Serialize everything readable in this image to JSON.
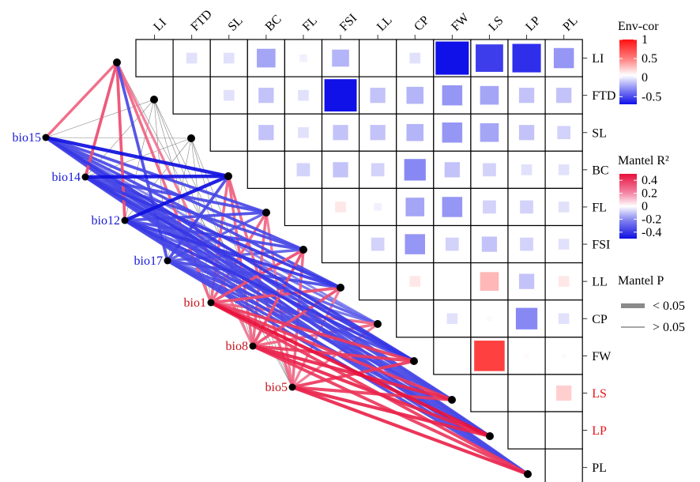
{
  "chart_data": {
    "type": "heatmap",
    "variables": [
      "LI",
      "FTD",
      "SL",
      "BC",
      "FL",
      "FSI",
      "LL",
      "CP",
      "FW",
      "LS",
      "LP",
      "PL"
    ],
    "row_label_colors": {
      "LS": "#e8141c",
      "LP": "#e8141c"
    },
    "env_cor": [
      {
        "row": "LI",
        "col": "FTD",
        "value": -0.1
      },
      {
        "row": "LI",
        "col": "SL",
        "value": -0.1
      },
      {
        "row": "LI",
        "col": "BC",
        "value": -0.3
      },
      {
        "row": "LI",
        "col": "FL",
        "value": -0.05
      },
      {
        "row": "LI",
        "col": "FSI",
        "value": -0.25
      },
      {
        "row": "LI",
        "col": "CP",
        "value": -0.1
      },
      {
        "row": "LI",
        "col": "FW",
        "value": -0.95
      },
      {
        "row": "LI",
        "col": "LS",
        "value": -0.65
      },
      {
        "row": "LI",
        "col": "LP",
        "value": -0.7
      },
      {
        "row": "LI",
        "col": "PL",
        "value": -0.35
      },
      {
        "row": "FTD",
        "col": "FSI",
        "value": -0.9
      },
      {
        "row": "FTD",
        "col": "SL",
        "value": -0.1
      },
      {
        "row": "FTD",
        "col": "BC",
        "value": -0.2
      },
      {
        "row": "FTD",
        "col": "FL",
        "value": -0.1
      },
      {
        "row": "FTD",
        "col": "LL",
        "value": -0.2
      },
      {
        "row": "FTD",
        "col": "CP",
        "value": -0.25
      },
      {
        "row": "FTD",
        "col": "FW",
        "value": -0.35
      },
      {
        "row": "FTD",
        "col": "LS",
        "value": -0.3
      },
      {
        "row": "FTD",
        "col": "LP",
        "value": -0.2
      },
      {
        "row": "FTD",
        "col": "PL",
        "value": -0.2
      },
      {
        "row": "SL",
        "col": "BC",
        "value": -0.2
      },
      {
        "row": "SL",
        "col": "FL",
        "value": -0.1
      },
      {
        "row": "SL",
        "col": "FSI",
        "value": -0.2
      },
      {
        "row": "SL",
        "col": "LL",
        "value": -0.2
      },
      {
        "row": "SL",
        "col": "CP",
        "value": -0.25
      },
      {
        "row": "SL",
        "col": "FW",
        "value": -0.35
      },
      {
        "row": "SL",
        "col": "LS",
        "value": -0.3
      },
      {
        "row": "SL",
        "col": "LP",
        "value": -0.2
      },
      {
        "row": "SL",
        "col": "PL",
        "value": -0.15
      },
      {
        "row": "BC",
        "col": "FL",
        "value": -0.15
      },
      {
        "row": "BC",
        "col": "FSI",
        "value": -0.2
      },
      {
        "row": "BC",
        "col": "LL",
        "value": -0.15
      },
      {
        "row": "BC",
        "col": "CP",
        "value": -0.4
      },
      {
        "row": "BC",
        "col": "FW",
        "value": -0.2
      },
      {
        "row": "BC",
        "col": "LS",
        "value": -0.15
      },
      {
        "row": "BC",
        "col": "LP",
        "value": -0.1
      },
      {
        "row": "BC",
        "col": "PL",
        "value": -0.1
      },
      {
        "row": "FL",
        "col": "FSI",
        "value": 0.1
      },
      {
        "row": "FL",
        "col": "LL",
        "value": -0.05
      },
      {
        "row": "FL",
        "col": "CP",
        "value": -0.3
      },
      {
        "row": "FL",
        "col": "FW",
        "value": -0.35
      },
      {
        "row": "FL",
        "col": "LS",
        "value": -0.15
      },
      {
        "row": "FL",
        "col": "LP",
        "value": -0.15
      },
      {
        "row": "FL",
        "col": "PL",
        "value": -0.1
      },
      {
        "row": "FSI",
        "col": "LL",
        "value": -0.15
      },
      {
        "row": "FSI",
        "col": "CP",
        "value": -0.35
      },
      {
        "row": "FSI",
        "col": "FW",
        "value": -0.15
      },
      {
        "row": "FSI",
        "col": "LS",
        "value": -0.2
      },
      {
        "row": "FSI",
        "col": "LP",
        "value": -0.15
      },
      {
        "row": "FSI",
        "col": "PL",
        "value": -0.1
      },
      {
        "row": "LL",
        "col": "CP",
        "value": 0.1
      },
      {
        "row": "LL",
        "col": "LS",
        "value": 0.3
      },
      {
        "row": "LL",
        "col": "LP",
        "value": -0.2
      },
      {
        "row": "LL",
        "col": "PL",
        "value": 0.1
      },
      {
        "row": "CP",
        "col": "FW",
        "value": -0.1
      },
      {
        "row": "CP",
        "col": "LS",
        "value": -0.02
      },
      {
        "row": "CP",
        "col": "LP",
        "value": -0.4
      },
      {
        "row": "CP",
        "col": "PL",
        "value": -0.1
      },
      {
        "row": "FW",
        "col": "LS",
        "value": 0.8
      },
      {
        "row": "FW",
        "col": "LP",
        "value": 0.02
      },
      {
        "row": "FW",
        "col": "PL",
        "value": 0.02
      },
      {
        "row": "LS",
        "col": "PL",
        "value": 0.2
      }
    ],
    "env_labels": [
      {
        "name": "bio15",
        "color": "#1a1ad6"
      },
      {
        "name": "bio14",
        "color": "#1a1ad6"
      },
      {
        "name": "bio12",
        "color": "#1a1ad6"
      },
      {
        "name": "bio17",
        "color": "#1a1ad6"
      },
      {
        "name": "bio1",
        "color": "#c8141c"
      },
      {
        "name": "bio8",
        "color": "#c8141c"
      },
      {
        "name": "bio5",
        "color": "#c8141c"
      }
    ],
    "mantel": [
      {
        "env": "bio15",
        "var": "LI",
        "r": 0.25,
        "p": "<0.05"
      },
      {
        "env": "bio15",
        "var": "FTD",
        "r": -0.05,
        "p": ">0.05"
      },
      {
        "env": "bio15",
        "var": "SL",
        "r": -0.05,
        "p": ">0.05"
      },
      {
        "env": "bio15",
        "var": "BC",
        "r": -0.45,
        "p": "<0.05"
      },
      {
        "env": "bio15",
        "var": "FL",
        "r": -0.3,
        "p": "<0.05"
      },
      {
        "env": "bio15",
        "var": "FSI",
        "r": -0.3,
        "p": "<0.05"
      },
      {
        "env": "bio15",
        "var": "LL",
        "r": -0.3,
        "p": "<0.05"
      },
      {
        "env": "bio15",
        "var": "CP",
        "r": -0.15,
        "p": "<0.05"
      },
      {
        "env": "bio15",
        "var": "FW",
        "r": -0.35,
        "p": "<0.05"
      },
      {
        "env": "bio15",
        "var": "LS",
        "r": -0.3,
        "p": "<0.05"
      },
      {
        "env": "bio15",
        "var": "LP",
        "r": -0.3,
        "p": "<0.05"
      },
      {
        "env": "bio15",
        "var": "PL",
        "r": -0.3,
        "p": "<0.05"
      },
      {
        "env": "bio14",
        "var": "LI",
        "r": 0.3,
        "p": "<0.05"
      },
      {
        "env": "bio14",
        "var": "FTD",
        "r": -0.05,
        "p": ">0.05"
      },
      {
        "env": "bio14",
        "var": "SL",
        "r": -0.05,
        "p": ">0.05"
      },
      {
        "env": "bio14",
        "var": "BC",
        "r": -0.45,
        "p": "<0.05"
      },
      {
        "env": "bio14",
        "var": "FL",
        "r": -0.3,
        "p": "<0.05"
      },
      {
        "env": "bio14",
        "var": "FSI",
        "r": -0.3,
        "p": "<0.05"
      },
      {
        "env": "bio14",
        "var": "LL",
        "r": -0.35,
        "p": "<0.05"
      },
      {
        "env": "bio14",
        "var": "CP",
        "r": -0.2,
        "p": "<0.05"
      },
      {
        "env": "bio14",
        "var": "FW",
        "r": -0.35,
        "p": "<0.05"
      },
      {
        "env": "bio14",
        "var": "LS",
        "r": -0.3,
        "p": "<0.05"
      },
      {
        "env": "bio14",
        "var": "LP",
        "r": -0.3,
        "p": "<0.05"
      },
      {
        "env": "bio14",
        "var": "PL",
        "r": -0.3,
        "p": "<0.05"
      },
      {
        "env": "bio12",
        "var": "LI",
        "r": 0.3,
        "p": "<0.05"
      },
      {
        "env": "bio12",
        "var": "FTD",
        "r": -0.05,
        "p": ">0.05"
      },
      {
        "env": "bio12",
        "var": "SL",
        "r": -0.05,
        "p": ">0.05"
      },
      {
        "env": "bio12",
        "var": "BC",
        "r": -0.45,
        "p": "<0.05"
      },
      {
        "env": "bio12",
        "var": "FL",
        "r": -0.3,
        "p": "<0.05"
      },
      {
        "env": "bio12",
        "var": "FSI",
        "r": -0.3,
        "p": "<0.05"
      },
      {
        "env": "bio12",
        "var": "LL",
        "r": -0.35,
        "p": "<0.05"
      },
      {
        "env": "bio12",
        "var": "CP",
        "r": -0.25,
        "p": "<0.05"
      },
      {
        "env": "bio12",
        "var": "FW",
        "r": -0.35,
        "p": "<0.05"
      },
      {
        "env": "bio12",
        "var": "LS",
        "r": -0.3,
        "p": "<0.05"
      },
      {
        "env": "bio12",
        "var": "LP",
        "r": -0.3,
        "p": "<0.05"
      },
      {
        "env": "bio12",
        "var": "PL",
        "r": -0.3,
        "p": "<0.05"
      },
      {
        "env": "bio17",
        "var": "LI",
        "r": -0.3,
        "p": "<0.05"
      },
      {
        "env": "bio17",
        "var": "FTD",
        "r": -0.05,
        "p": ">0.05"
      },
      {
        "env": "bio17",
        "var": "SL",
        "r": -0.05,
        "p": ">0.05"
      },
      {
        "env": "bio17",
        "var": "BC",
        "r": -0.3,
        "p": "<0.05"
      },
      {
        "env": "bio17",
        "var": "FL",
        "r": -0.25,
        "p": "<0.05"
      },
      {
        "env": "bio17",
        "var": "FSI",
        "r": -0.25,
        "p": "<0.05"
      },
      {
        "env": "bio17",
        "var": "LL",
        "r": -0.3,
        "p": "<0.05"
      },
      {
        "env": "bio17",
        "var": "CP",
        "r": -0.2,
        "p": "<0.05"
      },
      {
        "env": "bio17",
        "var": "FW",
        "r": -0.3,
        "p": "<0.05"
      },
      {
        "env": "bio17",
        "var": "LS",
        "r": -0.3,
        "p": "<0.05"
      },
      {
        "env": "bio17",
        "var": "LP",
        "r": -0.3,
        "p": "<0.05"
      },
      {
        "env": "bio17",
        "var": "PL",
        "r": -0.3,
        "p": "<0.05"
      },
      {
        "env": "bio1",
        "var": "LI",
        "r": 0.25,
        "p": "<0.05"
      },
      {
        "env": "bio1",
        "var": "FTD",
        "r": -0.05,
        "p": ">0.05"
      },
      {
        "env": "bio1",
        "var": "SL",
        "r": -0.05,
        "p": ">0.05"
      },
      {
        "env": "bio1",
        "var": "BC",
        "r": 0.25,
        "p": "<0.05"
      },
      {
        "env": "bio1",
        "var": "FL",
        "r": 0.25,
        "p": "<0.05"
      },
      {
        "env": "bio1",
        "var": "FSI",
        "r": 0.3,
        "p": "<0.05"
      },
      {
        "env": "bio1",
        "var": "LL",
        "r": 0.3,
        "p": "<0.05"
      },
      {
        "env": "bio1",
        "var": "CP",
        "r": 0.25,
        "p": "<0.05"
      },
      {
        "env": "bio1",
        "var": "FW",
        "r": 0.35,
        "p": "<0.05"
      },
      {
        "env": "bio1",
        "var": "LS",
        "r": 0.35,
        "p": "<0.05"
      },
      {
        "env": "bio1",
        "var": "LP",
        "r": 0.45,
        "p": "<0.05"
      },
      {
        "env": "bio1",
        "var": "PL",
        "r": 0.35,
        "p": "<0.05"
      },
      {
        "env": "bio8",
        "var": "LI",
        "r": 0.2,
        "p": "<0.05"
      },
      {
        "env": "bio8",
        "var": "FTD",
        "r": -0.05,
        "p": ">0.05"
      },
      {
        "env": "bio8",
        "var": "SL",
        "r": -0.05,
        "p": ">0.05"
      },
      {
        "env": "bio8",
        "var": "BC",
        "r": 0.25,
        "p": "<0.05"
      },
      {
        "env": "bio8",
        "var": "FL",
        "r": 0.25,
        "p": "<0.05"
      },
      {
        "env": "bio8",
        "var": "FSI",
        "r": 0.3,
        "p": "<0.05"
      },
      {
        "env": "bio8",
        "var": "LL",
        "r": 0.3,
        "p": "<0.05"
      },
      {
        "env": "bio8",
        "var": "CP",
        "r": 0.25,
        "p": "<0.05"
      },
      {
        "env": "bio8",
        "var": "FW",
        "r": 0.35,
        "p": "<0.05"
      },
      {
        "env": "bio8",
        "var": "LS",
        "r": 0.4,
        "p": "<0.05"
      },
      {
        "env": "bio8",
        "var": "LP",
        "r": 0.4,
        "p": "<0.05"
      },
      {
        "env": "bio8",
        "var": "PL",
        "r": 0.35,
        "p": "<0.05"
      },
      {
        "env": "bio5",
        "var": "LI",
        "r": -0.05,
        "p": ">0.05"
      },
      {
        "env": "bio5",
        "var": "FTD",
        "r": -0.05,
        "p": ">0.05"
      },
      {
        "env": "bio5",
        "var": "SL",
        "r": -0.05,
        "p": ">0.05"
      },
      {
        "env": "bio5",
        "var": "BC",
        "r": 0.25,
        "p": "<0.05"
      },
      {
        "env": "bio5",
        "var": "FL",
        "r": 0.2,
        "p": "<0.05"
      },
      {
        "env": "bio5",
        "var": "FSI",
        "r": 0.25,
        "p": "<0.05"
      },
      {
        "env": "bio5",
        "var": "LL",
        "r": 0.2,
        "p": "<0.05"
      },
      {
        "env": "bio5",
        "var": "CP",
        "r": 0.2,
        "p": "<0.05"
      },
      {
        "env": "bio5",
        "var": "FW",
        "r": 0.35,
        "p": "<0.05"
      },
      {
        "env": "bio5",
        "var": "LS",
        "r": 0.35,
        "p": "<0.05"
      },
      {
        "env": "bio5",
        "var": "LP",
        "r": 0.4,
        "p": "<0.05"
      },
      {
        "env": "bio5",
        "var": "PL",
        "r": 0.4,
        "p": "<0.05"
      }
    ],
    "legends": {
      "env_cor": {
        "title": "Env-cor",
        "ticks": [
          "1",
          "0.5",
          "0",
          "-0.5"
        ],
        "tick_values": [
          1,
          0.5,
          0,
          -0.5
        ],
        "range": [
          -0.7,
          1.0
        ]
      },
      "mantel_r2": {
        "title": "Mantel R²",
        "ticks": [
          "0.4",
          "0.2",
          "0",
          "-0.2",
          "-0.4"
        ],
        "tick_values": [
          0.4,
          0.2,
          0,
          -0.2,
          -0.4
        ],
        "range": [
          -0.5,
          0.5
        ]
      },
      "mantel_p": {
        "title": "Mantel P",
        "items": [
          "< 0.05",
          "> 0.05"
        ]
      }
    }
  }
}
